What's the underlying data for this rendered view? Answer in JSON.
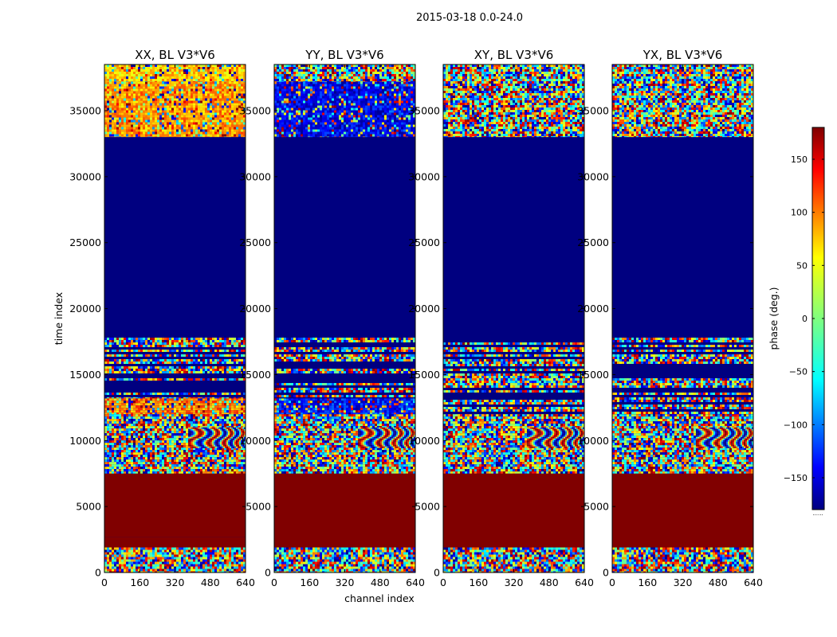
{
  "figure": {
    "title": "2015-03-18 0.0-24.0"
  },
  "chart_data": {
    "type": "heatmap",
    "title": "2015-03-18 0.0-24.0",
    "xlabel": "channel index",
    "ylabel": "time index",
    "xlim": [
      0,
      640
    ],
    "ylim": [
      0,
      38500
    ],
    "xticks": [
      "0",
      "160",
      "320",
      "480",
      "640"
    ],
    "yticks": [
      "0",
      "5000",
      "10000",
      "15000",
      "20000",
      "25000",
      "30000",
      "35000"
    ],
    "colormap": "jet",
    "colorbar": {
      "label": "phase (deg.)",
      "range": [
        -180,
        180
      ],
      "ticks": [
        "150",
        "100",
        "50",
        "0",
        "−50",
        "−100",
        "−150"
      ],
      "tick_values": [
        150,
        100,
        50,
        0,
        -50,
        -100,
        -150
      ],
      "footnote": "......"
    },
    "panels": [
      {
        "name": "xx",
        "title": "XX, BL V3*V6",
        "bands": [
          {
            "range": [
              0,
              1900
            ],
            "kind": "noise"
          },
          {
            "range": [
              1900,
              2700
            ],
            "kind": "flag",
            "value": 180
          },
          {
            "range": [
              2700,
              7500
            ],
            "kind": "flag",
            "value": 180
          },
          {
            "range": [
              7500,
              12000
            ],
            "kind": "noise"
          },
          {
            "range": [
              9500,
              11000
            ],
            "kind": "fringe",
            "from_channel": 380
          },
          {
            "range": [
              12000,
              13200
            ],
            "kind": "tinted",
            "value": 90
          },
          {
            "range": [
              13200,
              17800
            ],
            "kind": "striped"
          },
          {
            "range": [
              17800,
              33000
            ],
            "kind": "flag",
            "value": -180
          },
          {
            "range": [
              33000,
              37200
            ],
            "kind": "tinted",
            "value": 80
          },
          {
            "range": [
              37200,
              38500
            ],
            "kind": "tinted",
            "value": 60
          }
        ]
      },
      {
        "name": "yy",
        "title": "YY, BL V3*V6",
        "bands": [
          {
            "range": [
              0,
              1900
            ],
            "kind": "noise"
          },
          {
            "range": [
              1900,
              7500
            ],
            "kind": "flag",
            "value": 180
          },
          {
            "range": [
              7500,
              12000
            ],
            "kind": "noise"
          },
          {
            "range": [
              9500,
              11000
            ],
            "kind": "fringe",
            "from_channel": 380
          },
          {
            "range": [
              12000,
              13200
            ],
            "kind": "tinted",
            "value": -130
          },
          {
            "range": [
              13200,
              17800
            ],
            "kind": "striped"
          },
          {
            "range": [
              17800,
              33000
            ],
            "kind": "flag",
            "value": -180
          },
          {
            "range": [
              33000,
              37200
            ],
            "kind": "tinted",
            "value": -140
          },
          {
            "range": [
              37200,
              38500
            ],
            "kind": "noise"
          }
        ]
      },
      {
        "name": "xy",
        "title": "XY, BL V3*V6",
        "bands": [
          {
            "range": [
              0,
              1900
            ],
            "kind": "noise"
          },
          {
            "range": [
              1900,
              7500
            ],
            "kind": "flag",
            "value": 180
          },
          {
            "range": [
              7500,
              12000
            ],
            "kind": "noise"
          },
          {
            "range": [
              9500,
              11000
            ],
            "kind": "fringe",
            "from_channel": 380
          },
          {
            "range": [
              12000,
              17800
            ],
            "kind": "striped"
          },
          {
            "range": [
              17800,
              33000
            ],
            "kind": "flag",
            "value": -180
          },
          {
            "range": [
              33000,
              38500
            ],
            "kind": "noise"
          }
        ]
      },
      {
        "name": "yx",
        "title": "YX, BL V3*V6",
        "bands": [
          {
            "range": [
              0,
              1900
            ],
            "kind": "noise"
          },
          {
            "range": [
              1900,
              7500
            ],
            "kind": "flag",
            "value": 180
          },
          {
            "range": [
              7500,
              12000
            ],
            "kind": "noise"
          },
          {
            "range": [
              9500,
              11000
            ],
            "kind": "fringe",
            "from_channel": 380
          },
          {
            "range": [
              12000,
              17800
            ],
            "kind": "striped"
          },
          {
            "range": [
              17800,
              33000
            ],
            "kind": "flag",
            "value": -180
          },
          {
            "range": [
              33000,
              38500
            ],
            "kind": "noise"
          }
        ]
      }
    ]
  }
}
